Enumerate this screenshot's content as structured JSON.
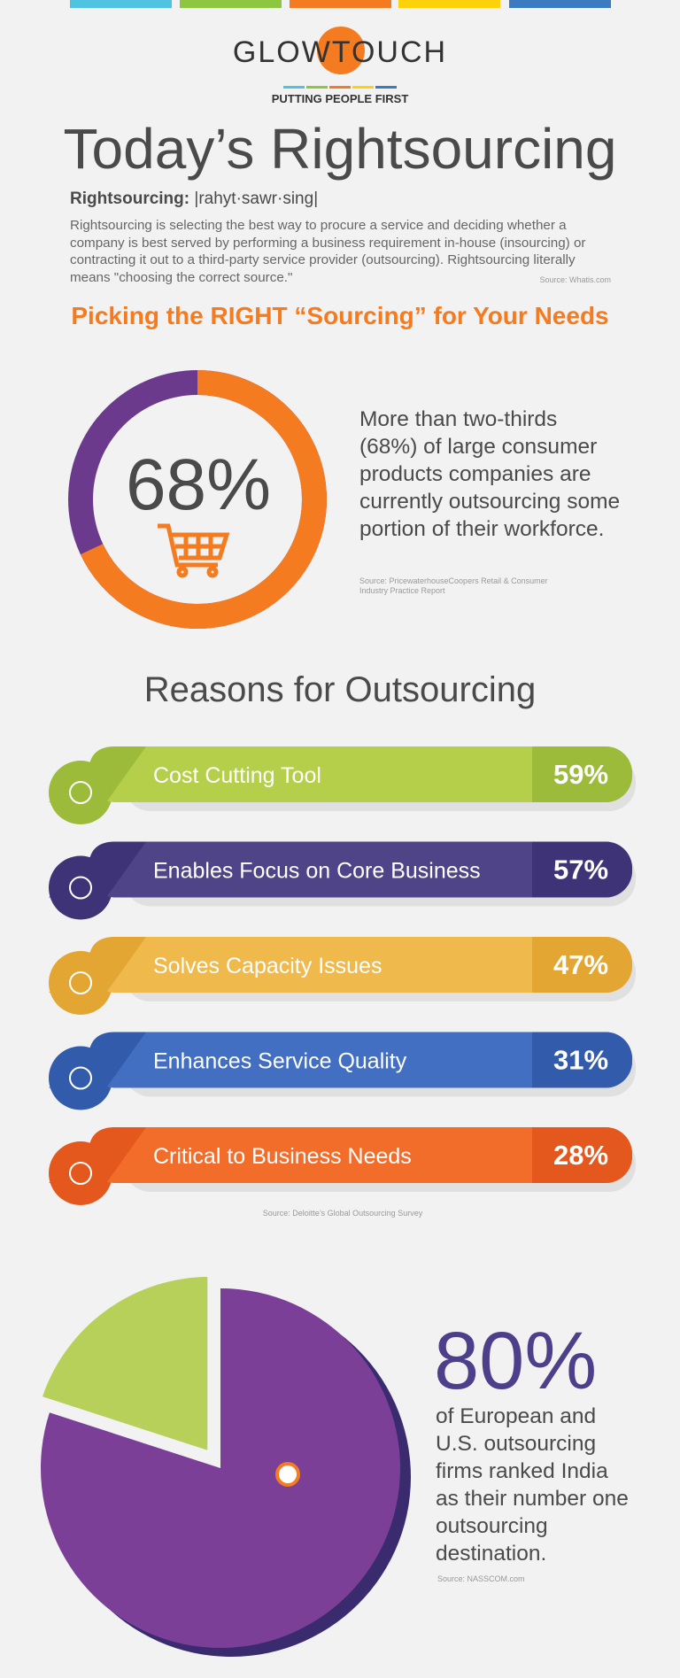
{
  "header": {
    "logo": "GLOWTOUCH",
    "tagline": "PUTTING PEOPLE FIRST",
    "title": "Today’s Rightsourcing"
  },
  "definition": {
    "term": "Rightsourcing:",
    "pronunciation": "|rahyt·sawr·sing|",
    "text": "Rightsourcing is selecting the best way to procure a service and deciding whether a company is best served by performing a business requirement in-house (insourcing) or contracting it out to a third-party service provider (outsourcing). Rightsourcing literally means \"choosing the correct source.\"",
    "source": "Source: Whatis.com"
  },
  "subtitle": "Picking the RIGHT “Sourcing” for Your Needs",
  "stat1": {
    "value": 68,
    "value_label": "68%",
    "color": "#f47b20",
    "rest_color": "#6b3a8c",
    "text": "More than two-thirds (68%) of large consumer products companies are currently outsourcing some portion of their workforce.",
    "source": "Source: PricewaterhouseCoopers Retail & Consumer Industry Practice Report"
  },
  "reasons": {
    "title": "Reasons for Outsourcing",
    "items": [
      {
        "label": "Cost Cutting Tool",
        "value_label": "59%",
        "color": "#b5cf4a",
        "dark": "#9cbb3a"
      },
      {
        "label": "Enables Focus on Core Business",
        "value_label": "57%",
        "color": "#504488",
        "dark": "#3f3378"
      },
      {
        "label": "Solves Capacity Issues",
        "value_label": "47%",
        "color": "#f0b94c",
        "dark": "#e4a633"
      },
      {
        "label": "Enhances Service Quality",
        "value_label": "31%",
        "color": "#426fc2",
        "dark": "#325cab"
      },
      {
        "label": "Critical to Business Needs",
        "value_label": "28%",
        "color": "#f26c2a",
        "dark": "#e5581d"
      }
    ],
    "source": "Source: Deloitte’s Global Outsourcing Survey"
  },
  "stat2": {
    "value": 80,
    "value_label": "80%",
    "color": "#7b3f98",
    "rest_color": "#b6d05a",
    "text": "of European and U.S. outsourcing firms ranked India as their number one outsourcing destination.",
    "source": "Source: NASSCOM.com"
  }
}
